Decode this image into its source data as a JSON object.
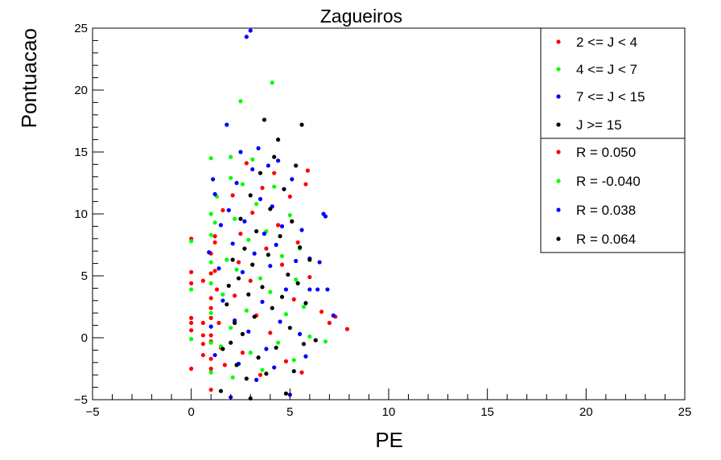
{
  "chart_data": {
    "type": "scatter",
    "title": "Zagueiros",
    "xlabel": "PE",
    "ylabel": "Pontuacao",
    "xlim": [
      -5,
      25
    ],
    "ylim": [
      -5,
      25
    ],
    "xticks": [
      -5,
      0,
      5,
      10,
      15,
      20,
      25
    ],
    "yticks": [
      -5,
      0,
      5,
      10,
      15,
      20,
      25
    ],
    "grid": false,
    "legend_position": "top-right",
    "series": [
      {
        "name": "2 <= J < 4",
        "color": "#ff0000",
        "points": [
          [
            0,
            8
          ],
          [
            0,
            5.3
          ],
          [
            0,
            4.4
          ],
          [
            0,
            1.6
          ],
          [
            0,
            1.2
          ],
          [
            0,
            0.6
          ],
          [
            0,
            -2.5
          ],
          [
            0.6,
            4.6
          ],
          [
            0.6,
            1.2
          ],
          [
            0.6,
            0.2
          ],
          [
            0.6,
            -0.5
          ],
          [
            0.6,
            -1.4
          ],
          [
            1,
            6.8
          ],
          [
            1,
            5.2
          ],
          [
            1,
            3.2
          ],
          [
            1,
            2.4
          ],
          [
            1,
            1.6
          ],
          [
            1,
            0.2
          ],
          [
            1,
            -0.3
          ],
          [
            1,
            -1.7
          ],
          [
            1,
            -2.5
          ],
          [
            1,
            -4.2
          ],
          [
            1.2,
            8.2
          ],
          [
            1.2,
            7.7
          ],
          [
            1.2,
            5.4
          ],
          [
            1.3,
            3.9
          ],
          [
            1.4,
            1.2
          ],
          [
            1.5,
            -0.8
          ],
          [
            1.6,
            10.3
          ],
          [
            1.7,
            -2.2
          ],
          [
            2.1,
            11.5
          ],
          [
            2.2,
            3.4
          ],
          [
            2.4,
            6.1
          ],
          [
            2.5,
            8.4
          ],
          [
            2.6,
            -1.2
          ],
          [
            2.8,
            14.1
          ],
          [
            3,
            4.6
          ],
          [
            3.1,
            10.1
          ],
          [
            3.3,
            1.8
          ],
          [
            3.5,
            -3
          ],
          [
            3.6,
            12.1
          ],
          [
            3.8,
            7.2
          ],
          [
            4,
            0.4
          ],
          [
            4.2,
            13.3
          ],
          [
            4.4,
            9.1
          ],
          [
            4.6,
            5.9
          ],
          [
            4.8,
            -1.9
          ],
          [
            5,
            11.4
          ],
          [
            5.2,
            3.1
          ],
          [
            5.4,
            7.7
          ],
          [
            5.6,
            -2.8
          ],
          [
            5.8,
            12.4
          ],
          [
            5.9,
            13.5
          ],
          [
            6,
            4.9
          ],
          [
            6.6,
            2.1
          ],
          [
            7,
            1.2
          ],
          [
            7.3,
            1.7
          ],
          [
            7.9,
            0.7
          ]
        ]
      },
      {
        "name": "4 <= J < 7",
        "color": "#00ff00",
        "points": [
          [
            0,
            7.8
          ],
          [
            0,
            3.9
          ],
          [
            0,
            -0.1
          ],
          [
            1,
            14.5
          ],
          [
            1,
            10
          ],
          [
            1,
            8.3
          ],
          [
            1,
            6.1
          ],
          [
            1,
            4.4
          ],
          [
            1,
            2
          ],
          [
            1,
            -0.4
          ],
          [
            1,
            -2.8
          ],
          [
            1.2,
            9.3
          ],
          [
            1.3,
            11.4
          ],
          [
            1.5,
            -0.7
          ],
          [
            1.6,
            3.5
          ],
          [
            1.8,
            6.3
          ],
          [
            2,
            14.6
          ],
          [
            2,
            12.9
          ],
          [
            2,
            0.8
          ],
          [
            2.1,
            -3.2
          ],
          [
            2.2,
            9.6
          ],
          [
            2.3,
            5.5
          ],
          [
            2.5,
            19.1
          ],
          [
            2.6,
            12.4
          ],
          [
            2.8,
            2.2
          ],
          [
            2.9,
            7.9
          ],
          [
            3,
            -1.2
          ],
          [
            3.1,
            14.4
          ],
          [
            3.3,
            10.8
          ],
          [
            3.5,
            4.8
          ],
          [
            3.6,
            -2.6
          ],
          [
            3.8,
            8.6
          ],
          [
            4,
            3.7
          ],
          [
            4.1,
            20.6
          ],
          [
            4.2,
            12.2
          ],
          [
            4.4,
            -0.4
          ],
          [
            4.6,
            6.6
          ],
          [
            4.8,
            1.9
          ],
          [
            5,
            9.9
          ],
          [
            5.2,
            -1.8
          ],
          [
            5.3,
            4.7
          ],
          [
            5.5,
            7.2
          ],
          [
            5.7,
            2.5
          ],
          [
            6,
            0.1
          ],
          [
            6.3,
            -0.2
          ],
          [
            6.8,
            -0.3
          ]
        ]
      },
      {
        "name": "7 <= J < 15",
        "color": "#0000ff",
        "points": [
          [
            0.9,
            6.9
          ],
          [
            1,
            0.9
          ],
          [
            1.1,
            12.8
          ],
          [
            1.2,
            11.6
          ],
          [
            1.2,
            -1.4
          ],
          [
            1.4,
            5.6
          ],
          [
            1.5,
            9.1
          ],
          [
            1.6,
            3
          ],
          [
            1.8,
            17.2
          ],
          [
            1.9,
            10.3
          ],
          [
            2,
            -4.8
          ],
          [
            2.1,
            7.6
          ],
          [
            2.2,
            1.4
          ],
          [
            2.3,
            12.5
          ],
          [
            2.4,
            -2.1
          ],
          [
            2.5,
            15
          ],
          [
            2.6,
            5.3
          ],
          [
            2.7,
            9.4
          ],
          [
            2.8,
            24.3
          ],
          [
            2.9,
            0.5
          ],
          [
            3,
            24.8
          ],
          [
            3.1,
            13.6
          ],
          [
            3.2,
            6.8
          ],
          [
            3.3,
            -3.4
          ],
          [
            3.4,
            15.3
          ],
          [
            3.5,
            11.2
          ],
          [
            3.6,
            2.9
          ],
          [
            3.7,
            8.4
          ],
          [
            3.8,
            -0.9
          ],
          [
            3.9,
            13.9
          ],
          [
            4,
            5.8
          ],
          [
            4.1,
            10.6
          ],
          [
            4.2,
            -2.4
          ],
          [
            4.3,
            7.5
          ],
          [
            4.4,
            14.3
          ],
          [
            4.5,
            1.3
          ],
          [
            4.6,
            9
          ],
          [
            4.8,
            3.9
          ],
          [
            5,
            -4.6
          ],
          [
            5.1,
            12.8
          ],
          [
            5.3,
            6.2
          ],
          [
            5.5,
            0.3
          ],
          [
            5.6,
            8.7
          ],
          [
            5.8,
            -1.5
          ],
          [
            6,
            3.9
          ],
          [
            6,
            6.4
          ],
          [
            6.4,
            3.9
          ],
          [
            6.5,
            6.1
          ],
          [
            6.7,
            10
          ],
          [
            6.8,
            9.8
          ],
          [
            6.9,
            3.9
          ],
          [
            7.2,
            1.8
          ]
        ]
      },
      {
        "name": "J >= 15",
        "color": "#000000",
        "points": [
          [
            1.5,
            -4.3
          ],
          [
            1.6,
            -0.9
          ],
          [
            1.8,
            2.7
          ],
          [
            1.9,
            4.2
          ],
          [
            2,
            -0.4
          ],
          [
            2.1,
            6.3
          ],
          [
            2.2,
            1.2
          ],
          [
            2.3,
            -2.2
          ],
          [
            2.4,
            4.8
          ],
          [
            2.5,
            9.6
          ],
          [
            2.6,
            0.3
          ],
          [
            2.7,
            7.2
          ],
          [
            2.8,
            -3.3
          ],
          [
            2.9,
            3.5
          ],
          [
            3,
            11.5
          ],
          [
            3,
            -4.9
          ],
          [
            3.1,
            5.9
          ],
          [
            3.2,
            1.7
          ],
          [
            3.3,
            8.6
          ],
          [
            3.4,
            -1.6
          ],
          [
            3.5,
            13.3
          ],
          [
            3.6,
            4.1
          ],
          [
            3.7,
            17.6
          ],
          [
            3.8,
            -2.9
          ],
          [
            3.9,
            6.7
          ],
          [
            4,
            10.4
          ],
          [
            4.1,
            2.4
          ],
          [
            4.2,
            14.6
          ],
          [
            4.3,
            -0.8
          ],
          [
            4.4,
            16
          ],
          [
            4.5,
            8.2
          ],
          [
            4.6,
            3.3
          ],
          [
            4.7,
            12
          ],
          [
            4.8,
            -4.5
          ],
          [
            4.9,
            5.1
          ],
          [
            5,
            0.8
          ],
          [
            5.1,
            9.4
          ],
          [
            5.2,
            -2.7
          ],
          [
            5.3,
            13.9
          ],
          [
            5.4,
            4.4
          ],
          [
            5.5,
            7.3
          ],
          [
            5.6,
            17.2
          ],
          [
            5.7,
            -0.5
          ],
          [
            5.8,
            2.8
          ],
          [
            6,
            6.3
          ],
          [
            6.3,
            -0.2
          ]
        ]
      }
    ],
    "correlations": [
      {
        "label": "R = 0.050",
        "color": "#ff0000"
      },
      {
        "label": "R = -0.040",
        "color": "#00ff00"
      },
      {
        "label": "R = 0.038",
        "color": "#0000ff"
      },
      {
        "label": "R = 0.064",
        "color": "#000000"
      }
    ]
  }
}
